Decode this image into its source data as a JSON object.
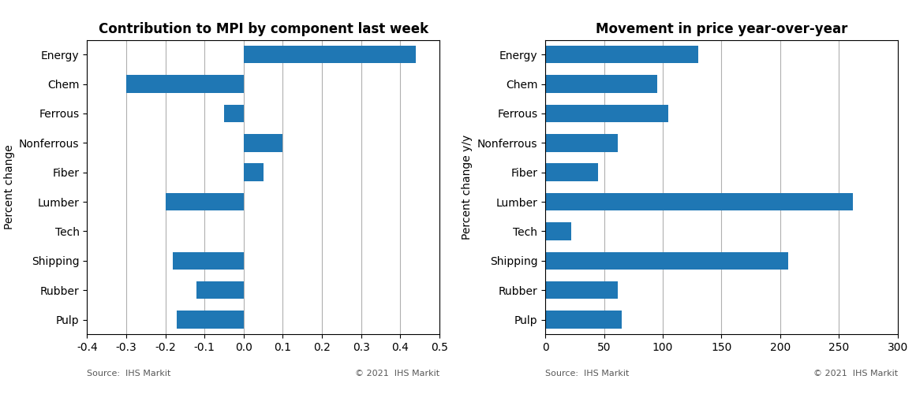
{
  "chart_data": [
    {
      "type": "bar",
      "orientation": "horizontal",
      "title": "Contribution to MPI by component last week",
      "categories": [
        "Energy",
        "Chem",
        "Ferrous",
        "Nonferrous",
        "Fiber",
        "Lumber",
        "Tech",
        "Shipping",
        "Rubber",
        "Pulp"
      ],
      "values": [
        0.44,
        -0.3,
        -0.05,
        0.1,
        0.05,
        -0.2,
        0.0,
        -0.18,
        -0.12,
        -0.17
      ],
      "ylabel": "Percent change",
      "xlim": [
        -0.4,
        0.5
      ],
      "xticks": [
        -0.4,
        -0.3,
        -0.2,
        -0.1,
        0.0,
        0.1,
        0.2,
        0.3,
        0.4,
        0.5
      ],
      "grid": true,
      "source": "Source:  IHS Markit",
      "copyright": "© 2021  IHS Markit"
    },
    {
      "type": "bar",
      "orientation": "horizontal",
      "title": "Movement in price year-over-year",
      "categories": [
        "Energy",
        "Chem",
        "Ferrous",
        "Nonferrous",
        "Fiber",
        "Lumber",
        "Tech",
        "Shipping",
        "Rubber",
        "Pulp"
      ],
      "values": [
        130,
        95,
        105,
        62,
        45,
        262,
        22,
        207,
        62,
        65
      ],
      "ylabel": "Percent change y/y",
      "xlim": [
        0,
        300
      ],
      "xticks": [
        0,
        50,
        100,
        150,
        200,
        250,
        300
      ],
      "grid": true,
      "source": "Source:  IHS Markit",
      "copyright": "© 2021  IHS Markit"
    }
  ]
}
